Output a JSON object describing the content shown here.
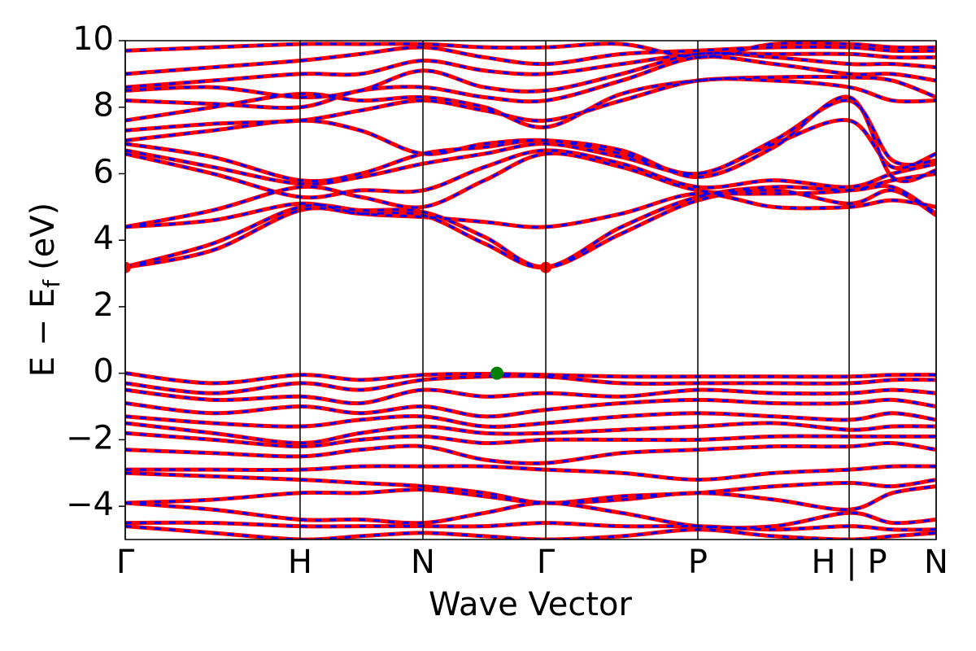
{
  "chart_data": {
    "type": "line",
    "xlabel": "Wave Vector",
    "ylabel": [
      "E − E",
      "f",
      "(eV)"
    ],
    "xlim": [
      0,
      1
    ],
    "xticks": [
      {
        "value": 0,
        "label": "Γ"
      },
      {
        "value": 0.2156,
        "label": "H"
      },
      {
        "value": 0.3671,
        "label": "N"
      },
      {
        "value": 0.5186,
        "label": "Γ"
      },
      {
        "value": 0.7061,
        "label": "P"
      },
      {
        "value": 0.8927,
        "label": "H | P"
      },
      {
        "value": 1,
        "label": "N"
      }
    ],
    "ylim": [
      -5,
      10
    ],
    "yticks": [
      {
        "value": -4,
        "label": "−4"
      },
      {
        "value": -2,
        "label": "−2"
      },
      0,
      2,
      4,
      6,
      8,
      10
    ],
    "grid_x": true,
    "styles": [
      {
        "color": "#ff0000",
        "width": 5,
        "dash": "none"
      },
      {
        "color": "#0000ff",
        "width": 3,
        "dash": "8 10"
      }
    ],
    "x": [
      0,
      0.108,
      0.2156,
      0.29,
      0.3671,
      0.443,
      0.5186,
      0.612,
      0.7061,
      0.8,
      0.8927,
      0.946,
      1
    ],
    "bands": [
      [
        3.18,
        3.7,
        4.9,
        4.8,
        4.75,
        3.9,
        3.18,
        4.2,
        5.2,
        5.5,
        5.1,
        5.5,
        4.75
      ],
      [
        3.2,
        3.9,
        5.0,
        4.9,
        4.85,
        4.1,
        3.2,
        4.4,
        5.3,
        5.6,
        5.5,
        5.6,
        4.8
      ],
      [
        4.4,
        4.6,
        5.1,
        4.8,
        4.7,
        4.55,
        4.4,
        4.8,
        5.4,
        5.0,
        5.0,
        5.2,
        5.0
      ],
      [
        4.4,
        4.9,
        5.6,
        5.3,
        5.0,
        5.8,
        6.6,
        6.2,
        5.5,
        5.4,
        5.5,
        5.8,
        6.0
      ],
      [
        6.6,
        6.0,
        5.3,
        5.5,
        5.5,
        6.2,
        6.7,
        6.3,
        5.6,
        5.8,
        5.6,
        6.0,
        6.3
      ],
      [
        6.7,
        6.2,
        5.7,
        5.9,
        6.3,
        6.6,
        6.9,
        6.5,
        6.0,
        6.9,
        7.6,
        6.2,
        6.6
      ],
      [
        6.9,
        6.5,
        5.8,
        6.0,
        6.6,
        6.8,
        7.0,
        6.6,
        6.0,
        7.0,
        8.2,
        6.4,
        6.4
      ],
      [
        7.0,
        7.3,
        7.6,
        7.3,
        6.6,
        6.9,
        7.0,
        6.7,
        5.9,
        6.8,
        8.3,
        5.9,
        6.1
      ],
      [
        7.3,
        7.5,
        7.6,
        7.9,
        8.2,
        7.9,
        7.6,
        8.2,
        8.8,
        8.8,
        8.6,
        8.2,
        8.2
      ],
      [
        7.6,
        8.0,
        8.4,
        8.2,
        8.3,
        8.0,
        7.4,
        8.4,
        8.8,
        8.9,
        8.9,
        8.8,
        8.3
      ],
      [
        8.2,
        8.1,
        8.0,
        8.5,
        8.6,
        8.3,
        8.2,
        8.8,
        9.5,
        9.3,
        9.0,
        9.0,
        8.8
      ],
      [
        8.5,
        8.6,
        8.3,
        8.5,
        9.1,
        8.6,
        8.5,
        9.0,
        9.6,
        9.5,
        9.3,
        9.3,
        9.2
      ],
      [
        8.6,
        8.8,
        9.0,
        9.0,
        9.4,
        9.1,
        9.0,
        9.3,
        9.6,
        9.6,
        9.6,
        9.5,
        9.5
      ],
      [
        9.0,
        9.2,
        9.4,
        9.6,
        9.8,
        9.5,
        9.3,
        9.6,
        9.7,
        9.8,
        9.8,
        9.7,
        9.7
      ],
      [
        9.7,
        9.8,
        9.9,
        9.9,
        9.9,
        9.8,
        9.8,
        9.9,
        9.5,
        9.9,
        9.9,
        9.8,
        9.8
      ],
      [
        0,
        -0.3,
        -0.05,
        -0.2,
        -0.05,
        -0.02,
        -0.05,
        -0.1,
        -0.1,
        -0.1,
        -0.1,
        -0.05,
        -0.05
      ],
      [
        -0.3,
        -0.6,
        -0.3,
        -0.5,
        -0.2,
        -0.1,
        -0.1,
        -0.3,
        -0.3,
        -0.3,
        -0.3,
        -0.2,
        -0.2
      ],
      [
        -0.5,
        -0.8,
        -0.7,
        -0.9,
        -0.5,
        -0.7,
        -0.6,
        -0.7,
        -0.5,
        -0.6,
        -0.6,
        -0.5,
        -0.6
      ],
      [
        -0.9,
        -1.2,
        -1.0,
        -1.2,
        -1.0,
        -1.3,
        -1.1,
        -0.9,
        -0.8,
        -0.9,
        -0.9,
        -0.8,
        -1.0
      ],
      [
        -1.3,
        -1.5,
        -1.6,
        -1.4,
        -1.3,
        -1.6,
        -1.5,
        -1.3,
        -1.2,
        -1.3,
        -1.4,
        -1.2,
        -1.4
      ],
      [
        -1.5,
        -1.8,
        -2.1,
        -1.8,
        -1.6,
        -1.8,
        -1.8,
        -1.7,
        -1.6,
        -1.5,
        -1.7,
        -1.6,
        -1.6
      ],
      [
        -1.8,
        -2.0,
        -2.2,
        -2.0,
        -1.9,
        -2.1,
        -2.0,
        -2.0,
        -2.0,
        -1.9,
        -1.9,
        -1.9,
        -1.9
      ],
      [
        -2.3,
        -2.4,
        -2.5,
        -2.3,
        -2.2,
        -2.6,
        -2.7,
        -2.4,
        -2.3,
        -2.2,
        -2.2,
        -2.1,
        -2.3
      ],
      [
        -2.9,
        -2.9,
        -2.9,
        -2.8,
        -2.8,
        -2.8,
        -2.9,
        -3.0,
        -3.2,
        -3.0,
        -2.9,
        -2.8,
        -2.8
      ],
      [
        -3.0,
        -3.1,
        -3.2,
        -3.3,
        -3.4,
        -3.6,
        -3.9,
        -3.7,
        -3.6,
        -3.4,
        -3.3,
        -3.4,
        -3.2
      ],
      [
        -3.9,
        -3.8,
        -3.6,
        -3.6,
        -3.5,
        -3.7,
        -3.9,
        -3.8,
        -3.6,
        -3.8,
        -4.1,
        -3.6,
        -3.4
      ],
      [
        -3.9,
        -4.1,
        -4.4,
        -4.4,
        -4.5,
        -4.2,
        -3.9,
        -4.2,
        -4.6,
        -4.6,
        -4.2,
        -4.5,
        -4.4
      ],
      [
        -4.5,
        -4.5,
        -4.6,
        -4.6,
        -4.6,
        -4.6,
        -4.5,
        -4.6,
        -4.6,
        -4.7,
        -4.6,
        -4.7,
        -4.7
      ],
      [
        -4.6,
        -4.8,
        -5.0,
        -4.9,
        -4.8,
        -4.9,
        -5.0,
        -4.9,
        -4.7,
        -4.9,
        -5.0,
        -4.9,
        -4.8
      ]
    ],
    "cbm": {
      "x": [
        0,
        0.5186
      ],
      "y": [
        3.18,
        3.18
      ],
      "color": "#ff0000"
    },
    "vbm": {
      "x": [
        0.4584
      ],
      "y": [
        0
      ],
      "color": "#008000"
    }
  }
}
